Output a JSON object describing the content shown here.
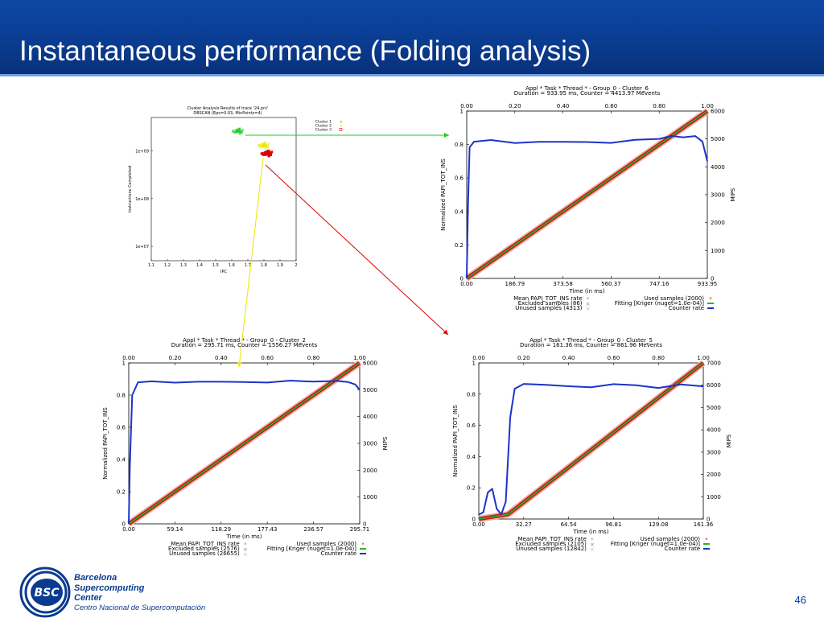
{
  "slide": {
    "title": "Instantaneous performance (Folding analysis)",
    "page_number": "46",
    "header_color": "#0a3b8f"
  },
  "logo": {
    "badge": "BSC",
    "line1": "Barcelona",
    "line2": "Supercomputing",
    "line3": "Center",
    "line4": "Centro Nacional de Supercomputación"
  },
  "chart_data": [
    {
      "id": "cluster-scatter",
      "type": "scatter",
      "title": "Cluster Analysis Results of trace '24.prv'",
      "subtitle": "DBSCAN (Eps=0.03, MinPoints=4)",
      "xlabel": "IPC",
      "ylabel": "Instructions Completed",
      "xlim": [
        1.1,
        2.0
      ],
      "ylim": [
        5000000,
        5000000000
      ],
      "y_log": true,
      "x_ticks": [
        "1.1",
        "1.2",
        "1.3",
        "1.4",
        "1.5",
        "1.6",
        "1.7",
        "1.8",
        "1.9",
        "2"
      ],
      "y_ticks": [
        {
          "v": 10000000,
          "label": "1e+07"
        },
        {
          "v": 100000000,
          "label": "1e+08"
        },
        {
          "v": 1000000000,
          "label": "1e+09"
        }
      ],
      "legend_position": "top-right",
      "series": [
        {
          "name": "Cluster 1",
          "marker": "x",
          "color": "#22cc22",
          "center": [
            1.64,
            2600000000
          ]
        },
        {
          "name": "Cluster 2",
          "marker": "x",
          "color": "#e8e800",
          "center": [
            1.8,
            1300000000
          ]
        },
        {
          "name": "Cluster 3",
          "marker": "square",
          "color": "#dd0000",
          "center": [
            1.82,
            880000000
          ]
        }
      ]
    },
    {
      "id": "cluster-6",
      "type": "line",
      "title": "Appl * Task * Thread * - Group_0 - Cluster_6",
      "subtitle": "Duration = 933.95 ms, Counter = 4413.97 Mevents",
      "xlabel": "Time (in ms)",
      "ylabel_left": "Normalized PAPI_TOT_INS",
      "ylabel_right": "MIPS",
      "x_ticks": [
        "0.00",
        "186.79",
        "373.58",
        "560.37",
        "747.16",
        "933.95"
      ],
      "x2_ticks": [
        "0.00",
        "0.20",
        "0.40",
        "0.60",
        "0.80",
        "1.00"
      ],
      "y_ticks": [
        "0",
        "0.2",
        "0.4",
        "0.6",
        "0.8",
        "1"
      ],
      "y2_ticks": [
        "0",
        "1000",
        "2000",
        "3000",
        "4000",
        "5000",
        "6000"
      ],
      "y2_max": 6000,
      "normalized_instructions": [
        [
          0,
          0
        ],
        [
          1,
          1
        ]
      ],
      "counter_rate_mips": [
        [
          0,
          0
        ],
        [
          0.005,
          2500
        ],
        [
          0.012,
          4700
        ],
        [
          0.03,
          4900
        ],
        [
          0.1,
          4950
        ],
        [
          0.2,
          4870
        ],
        [
          0.3,
          4900
        ],
        [
          0.4,
          4880
        ],
        [
          0.5,
          4900
        ],
        [
          0.6,
          4870
        ],
        [
          0.7,
          4950
        ],
        [
          0.8,
          5000
        ],
        [
          0.85,
          5100
        ],
        [
          0.9,
          5050
        ],
        [
          0.95,
          5100
        ],
        [
          0.98,
          4900
        ],
        [
          1.0,
          4200
        ]
      ],
      "legend": {
        "left": [
          "Mean PAPI_TOT_INS rate",
          "Excluded samples (86)",
          "Unused samples (4313)"
        ],
        "right": [
          "Used samples (2000)",
          "Fitting [Kriger (nuget=1.0e-04)]",
          "Counter rate"
        ]
      }
    },
    {
      "id": "cluster-2",
      "type": "line",
      "title": "Appl * Task * Thread * - Group_0 - Cluster_2",
      "subtitle": "Duration = 295.71 ms, Counter = 1556.27 Mevents",
      "xlabel": "Time (in ms)",
      "ylabel_left": "Normalized PAPI_TOT_INS",
      "ylabel_right": "MIPS",
      "x_ticks": [
        "0.00",
        "59.14",
        "118.29",
        "177.43",
        "236.57",
        "295.71"
      ],
      "x2_ticks": [
        "0.00",
        "0.20",
        "0.40",
        "0.60",
        "0.80",
        "1.00"
      ],
      "y_ticks": [
        "0",
        "0.2",
        "0.4",
        "0.6",
        "0.8",
        "1"
      ],
      "y2_ticks": [
        "0",
        "1000",
        "2000",
        "3000",
        "4000",
        "5000",
        "6000"
      ],
      "y2_max": 6000,
      "normalized_instructions": [
        [
          0,
          0
        ],
        [
          1,
          1
        ]
      ],
      "counter_rate_mips": [
        [
          0,
          0
        ],
        [
          0.005,
          2200
        ],
        [
          0.015,
          4800
        ],
        [
          0.04,
          5250
        ],
        [
          0.1,
          5300
        ],
        [
          0.2,
          5280
        ],
        [
          0.3,
          5300
        ],
        [
          0.4,
          5280
        ],
        [
          0.5,
          5300
        ],
        [
          0.6,
          5280
        ],
        [
          0.7,
          5320
        ],
        [
          0.8,
          5300
        ],
        [
          0.9,
          5350
        ],
        [
          0.95,
          5300
        ],
        [
          0.98,
          5200
        ],
        [
          1.0,
          5000
        ]
      ],
      "legend": {
        "left": [
          "Mean PAPI_TOT_INS rate",
          "Excluded samples (2576)",
          "Unused samples (26655)"
        ],
        "right": [
          "Used samples (2000)",
          "Fitting [Kriger (nuget=1.0e-04)]",
          "Counter rate"
        ]
      }
    },
    {
      "id": "cluster-5",
      "type": "line",
      "title": "Appl * Task * Thread * - Group_0 - Cluster_5",
      "subtitle": "Duration = 161.36 ms, Counter = 861.96 Mevents",
      "xlabel": "Time (in ms)",
      "ylabel_left": "Normalized PAPI_TOT_INS",
      "ylabel_right": "MIPS",
      "x_ticks": [
        "0.00",
        "32.27",
        "64.54",
        "96.81",
        "129.08",
        "161.36"
      ],
      "x2_ticks": [
        "0.00",
        "0.20",
        "0.40",
        "0.60",
        "0.80",
        "1.00"
      ],
      "y_ticks": [
        "0",
        "0.2",
        "0.4",
        "0.6",
        "0.8",
        "1"
      ],
      "y2_ticks": [
        "0",
        "1000",
        "2000",
        "3000",
        "4000",
        "5000",
        "6000",
        "7000"
      ],
      "y2_max": 7000,
      "normalized_instructions": [
        [
          0,
          0
        ],
        [
          0.13,
          0.03
        ],
        [
          1,
          1
        ]
      ],
      "counter_rate_mips": [
        [
          0,
          200
        ],
        [
          0.02,
          300
        ],
        [
          0.04,
          1200
        ],
        [
          0.06,
          1300
        ],
        [
          0.08,
          500
        ],
        [
          0.1,
          200
        ],
        [
          0.12,
          800
        ],
        [
          0.14,
          4500
        ],
        [
          0.16,
          5900
        ],
        [
          0.2,
          6050
        ],
        [
          0.3,
          5950
        ],
        [
          0.4,
          6000
        ],
        [
          0.5,
          5950
        ],
        [
          0.6,
          5980
        ],
        [
          0.7,
          6000
        ],
        [
          0.8,
          5950
        ],
        [
          0.9,
          6000
        ],
        [
          1.0,
          5950
        ]
      ],
      "legend": {
        "left": [
          "Mean PAPI_TOT_INS rate",
          "Excluded samples (2105)",
          "Unused samples (12842)"
        ],
        "right": [
          "Used samples (2000)",
          "Fitting [Kriger (nuget=1.0e-04)]",
          "Counter rate"
        ]
      }
    }
  ]
}
